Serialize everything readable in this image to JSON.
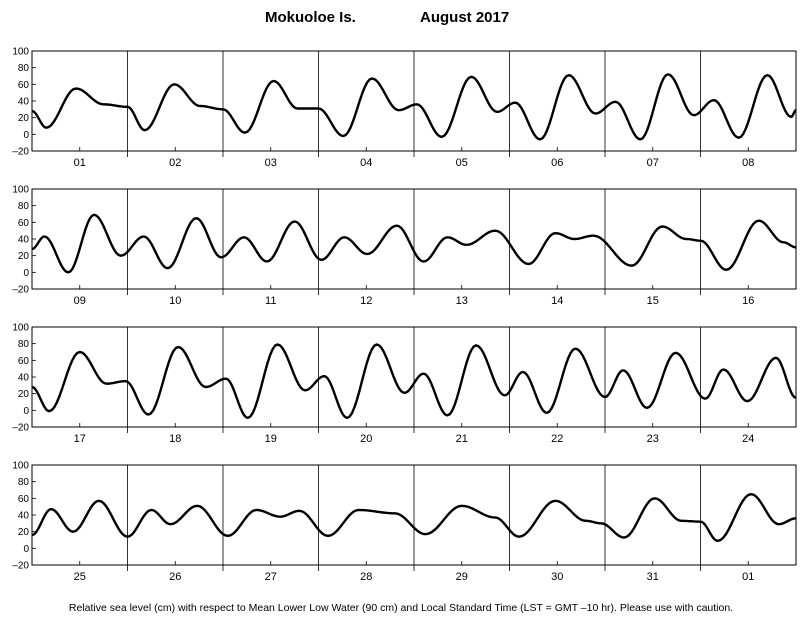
{
  "title": {
    "station": "Mokuoloe Is.",
    "period": "August   2017"
  },
  "footer": "Relative sea level (cm) with respect to Mean Lower Low Water (90 cm) and Local Standard Time (LST = GMT –10 hr). Please use with caution.",
  "chart_data": {
    "type": "line",
    "ylim": [
      -20,
      100
    ],
    "yticks": [
      "100",
      "80",
      "60",
      "40",
      "20",
      "0",
      "–20"
    ],
    "panels": [
      {
        "days": [
          "01",
          "02",
          "03",
          "04",
          "05",
          "06",
          "07",
          "08"
        ],
        "extrema": [
          [
            0,
            28
          ],
          [
            0.15,
            8
          ],
          [
            0.46,
            55
          ],
          [
            0.75,
            36
          ],
          [
            1.0,
            33
          ],
          [
            1.18,
            5
          ],
          [
            1.49,
            60
          ],
          [
            1.76,
            34
          ],
          [
            2.0,
            30
          ],
          [
            2.23,
            2
          ],
          [
            2.53,
            64
          ],
          [
            2.78,
            31
          ],
          [
            3.0,
            31
          ],
          [
            3.26,
            -2
          ],
          [
            3.56,
            67
          ],
          [
            3.84,
            29
          ],
          [
            4.03,
            36
          ],
          [
            4.29,
            -3
          ],
          [
            4.6,
            69
          ],
          [
            4.87,
            27
          ],
          [
            5.06,
            38
          ],
          [
            5.32,
            -6
          ],
          [
            5.62,
            71
          ],
          [
            5.9,
            25
          ],
          [
            6.11,
            39
          ],
          [
            6.37,
            -6
          ],
          [
            6.66,
            72
          ],
          [
            6.93,
            23
          ],
          [
            7.14,
            41
          ],
          [
            7.4,
            -4
          ],
          [
            7.7,
            71
          ],
          [
            7.95,
            21
          ],
          [
            8.0,
            29
          ]
        ]
      },
      {
        "days": [
          "09",
          "10",
          "11",
          "12",
          "13",
          "14",
          "15",
          "16"
        ],
        "extrema": [
          [
            0,
            28
          ],
          [
            0.13,
            43
          ],
          [
            0.38,
            0
          ],
          [
            0.65,
            69
          ],
          [
            0.93,
            20
          ],
          [
            1.17,
            43
          ],
          [
            1.42,
            5
          ],
          [
            1.72,
            65
          ],
          [
            1.98,
            18
          ],
          [
            2.22,
            42
          ],
          [
            2.46,
            13
          ],
          [
            2.75,
            61
          ],
          [
            3.03,
            15
          ],
          [
            3.27,
            42
          ],
          [
            3.51,
            22
          ],
          [
            3.82,
            56
          ],
          [
            4.1,
            13
          ],
          [
            4.35,
            42
          ],
          [
            4.55,
            33
          ],
          [
            4.85,
            50
          ],
          [
            5.2,
            10
          ],
          [
            5.48,
            47
          ],
          [
            5.68,
            40
          ],
          [
            5.88,
            44
          ],
          [
            6.28,
            8
          ],
          [
            6.6,
            55
          ],
          [
            6.85,
            40
          ],
          [
            7.0,
            38
          ],
          [
            7.27,
            3
          ],
          [
            7.61,
            62
          ],
          [
            7.87,
            36
          ],
          [
            8.0,
            30
          ]
        ]
      },
      {
        "days": [
          "17",
          "18",
          "19",
          "20",
          "21",
          "22",
          "23",
          "24"
        ],
        "extrema": [
          [
            0,
            28
          ],
          [
            0.18,
            -1
          ],
          [
            0.5,
            70
          ],
          [
            0.78,
            32
          ],
          [
            0.98,
            35
          ],
          [
            1.22,
            -5
          ],
          [
            1.53,
            76
          ],
          [
            1.82,
            28
          ],
          [
            2.03,
            38
          ],
          [
            2.26,
            -9
          ],
          [
            2.57,
            79
          ],
          [
            2.86,
            24
          ],
          [
            3.06,
            41
          ],
          [
            3.3,
            -9
          ],
          [
            3.61,
            79
          ],
          [
            3.9,
            21
          ],
          [
            4.1,
            44
          ],
          [
            4.35,
            -6
          ],
          [
            4.65,
            78
          ],
          [
            4.95,
            18
          ],
          [
            5.14,
            46
          ],
          [
            5.39,
            -3
          ],
          [
            5.69,
            74
          ],
          [
            6.0,
            16
          ],
          [
            6.19,
            48
          ],
          [
            6.44,
            3
          ],
          [
            6.74,
            69
          ],
          [
            7.05,
            14
          ],
          [
            7.24,
            49
          ],
          [
            7.49,
            11
          ],
          [
            7.79,
            63
          ],
          [
            8.0,
            15
          ]
        ]
      },
      {
        "days": [
          "25",
          "26",
          "27",
          "28",
          "29",
          "30",
          "31",
          "01"
        ],
        "extrema": [
          [
            0,
            16
          ],
          [
            0.2,
            47
          ],
          [
            0.43,
            20
          ],
          [
            0.7,
            57
          ],
          [
            1.0,
            14
          ],
          [
            1.25,
            46
          ],
          [
            1.45,
            29
          ],
          [
            1.73,
            51
          ],
          [
            2.05,
            15
          ],
          [
            2.35,
            46
          ],
          [
            2.6,
            38
          ],
          [
            2.8,
            45
          ],
          [
            3.1,
            15
          ],
          [
            3.42,
            46
          ],
          [
            3.8,
            42
          ],
          [
            4.12,
            17
          ],
          [
            4.5,
            51
          ],
          [
            4.85,
            37
          ],
          [
            5.1,
            14
          ],
          [
            5.48,
            57
          ],
          [
            5.8,
            33
          ],
          [
            5.96,
            30
          ],
          [
            6.2,
            13
          ],
          [
            6.52,
            60
          ],
          [
            6.8,
            33
          ],
          [
            7.0,
            32
          ],
          [
            7.18,
            9
          ],
          [
            7.53,
            65
          ],
          [
            7.82,
            29
          ],
          [
            8.0,
            36
          ]
        ]
      }
    ]
  }
}
